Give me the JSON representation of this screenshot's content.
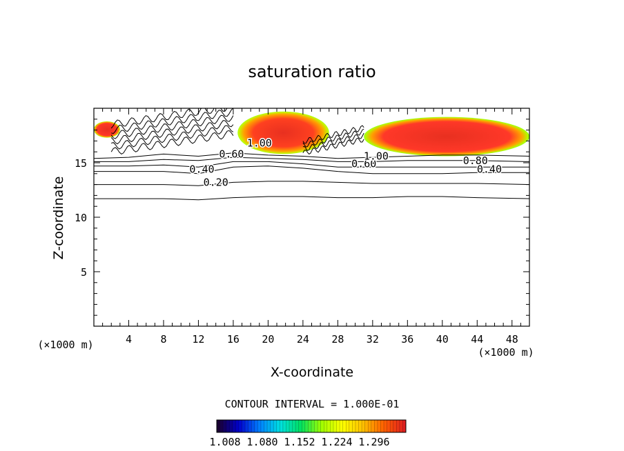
{
  "chart_data": {
    "type": "contour",
    "title": "saturation ratio",
    "xlabel": "X-coordinate",
    "ylabel": "Z-coordinate",
    "x_unit": "(×1000 m)",
    "y_unit": "(×1000 m)",
    "xlim": [
      0,
      50
    ],
    "ylim": [
      0,
      20
    ],
    "x_ticks": [
      4,
      8,
      12,
      16,
      20,
      24,
      28,
      32,
      36,
      40,
      44,
      48
    ],
    "x_tick_labels": [
      "4",
      "8",
      "12",
      "16",
      "20",
      "24",
      "28",
      "32",
      "36",
      "40",
      "44",
      "48"
    ],
    "y_ticks": [
      5,
      10,
      15
    ],
    "y_tick_labels": [
      "5",
      "10",
      "15"
    ],
    "contour_interval_text": "CONTOUR INTERVAL = 1.000E-01",
    "colorbar": {
      "tick_labels": [
        "1.008",
        "1.080",
        "1.152",
        "1.224",
        "1.296"
      ],
      "colors": [
        "#1a0033",
        "#0000cc",
        "#0080ff",
        "#00e0e0",
        "#00e060",
        "#a0ff00",
        "#ffff00",
        "#ffc000",
        "#ff6000",
        "#e02020"
      ]
    },
    "contour_labels": [
      {
        "text": "0.20",
        "x": 14,
        "z": 13.2
      },
      {
        "text": "0.40",
        "x": 12.4,
        "z": 14.4
      },
      {
        "text": "0.60",
        "x": 15.8,
        "z": 15.8
      },
      {
        "text": "1.00",
        "x": 19,
        "z": 16.8
      },
      {
        "text": "0.60",
        "x": 31,
        "z": 14.9
      },
      {
        "text": "1.00",
        "x": 32.4,
        "z": 15.6
      },
      {
        "text": "0.80",
        "x": 43.8,
        "z": 15.2
      },
      {
        "text": "0.40",
        "x": 45.4,
        "z": 14.4
      }
    ],
    "regions": [
      {
        "name": "supersaturated-cell-left",
        "x_range": [
          16.5,
          27
        ],
        "z_range": [
          15.8,
          19.7
        ],
        "max_ratio": 1.3
      },
      {
        "name": "supersaturated-cell-right",
        "x_range": [
          31,
          50
        ],
        "z_range": [
          15.6,
          19.2
        ],
        "max_ratio": 1.3
      },
      {
        "name": "supersaturated-edge-left",
        "x_range": [
          0,
          3
        ],
        "z_range": [
          17.3,
          18.8
        ],
        "max_ratio": 1.1
      }
    ],
    "contour_levels": [
      {
        "level": 0.1,
        "z": [
          11.7,
          11.7,
          11.7,
          11.6,
          11.8,
          11.9,
          11.9,
          11.8,
          11.8,
          11.9,
          11.9,
          11.8,
          11.7
        ]
      },
      {
        "level": 0.2,
        "z": [
          13.0,
          13.0,
          13.0,
          12.9,
          13.2,
          13.3,
          13.3,
          13.2,
          13.1,
          13.1,
          13.1,
          13.1,
          13.0
        ]
      },
      {
        "level": 0.4,
        "z": [
          14.2,
          14.2,
          14.2,
          14.0,
          14.6,
          14.7,
          14.5,
          14.2,
          14.0,
          14.0,
          14.0,
          14.1,
          14.1
        ]
      },
      {
        "level": 0.6,
        "z": [
          14.7,
          14.7,
          14.8,
          14.6,
          15.1,
          15.1,
          14.9,
          14.6,
          14.6,
          14.6,
          14.6,
          14.6,
          14.6
        ]
      },
      {
        "level": 0.8,
        "z": [
          15.1,
          15.1,
          15.3,
          15.2,
          15.5,
          15.4,
          15.3,
          15.1,
          15.1,
          15.2,
          15.2,
          15.2,
          15.1
        ]
      },
      {
        "level": 1.0,
        "z": [
          15.4,
          15.5,
          15.8,
          15.6,
          15.9,
          15.7,
          15.6,
          15.4,
          15.5,
          15.6,
          15.7,
          15.7,
          15.6
        ]
      }
    ],
    "contour_x": [
      0,
      4,
      8,
      12,
      16,
      20,
      24,
      28,
      32,
      36,
      40,
      44,
      50
    ]
  }
}
